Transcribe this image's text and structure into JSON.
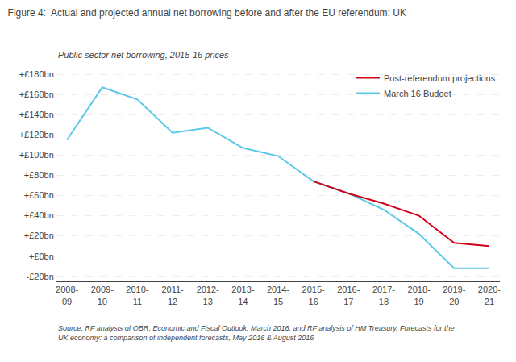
{
  "chart_data": {
    "type": "line",
    "title": "Figure 4:  Actual and projected annual net borrowing before and after the EU referendum: UK",
    "ylabel": "Public sector net borrowing, 2015-16 prices",
    "source": "Source: RF analysis of OBR, Economic and Fiscal Outlook, March 2016; and RF analysis of HM Treasury, Forecasts for the UK economy: a comparison of independent forecasts, May 2016 & August 2016",
    "categories": [
      "2008-\n09",
      "2009-\n10",
      "2010-\n11",
      "2011-\n12",
      "2012-\n13",
      "2013-\n14",
      "2014-\n15",
      "2015-\n16",
      "2016-\n17",
      "2017-\n18",
      "2018-\n19",
      "2019-\n20",
      "2020-\n21"
    ],
    "series": [
      {
        "name": "March 16 Budget",
        "color": "#5BC8E8",
        "values": [
          115,
          167,
          155,
          122,
          127,
          107,
          99,
          74,
          62,
          46,
          22,
          -12,
          -12
        ]
      },
      {
        "name": "Post-referendum projections",
        "color": "#D0021B",
        "values": [
          null,
          null,
          null,
          null,
          null,
          null,
          null,
          74,
          62,
          52,
          40,
          13,
          10
        ]
      }
    ],
    "ylim": [
      -25,
      188
    ],
    "yticks": [
      {
        "value": -20,
        "label": "-£20bn"
      },
      {
        "value": 0,
        "label": "+£0bn"
      },
      {
        "value": 20,
        "label": "+£20bn"
      },
      {
        "value": 40,
        "label": "+£40bn"
      },
      {
        "value": 60,
        "label": "+£60bn"
      },
      {
        "value": 80,
        "label": "+£80bn"
      },
      {
        "value": 100,
        "label": "+£100bn"
      },
      {
        "value": 120,
        "label": "+£120bn"
      },
      {
        "value": 140,
        "label": "+£140bn"
      },
      {
        "value": 160,
        "label": "+£160bn"
      },
      {
        "value": 180,
        "label": "+£180bn"
      }
    ],
    "grid": true,
    "legend": "upper right"
  }
}
